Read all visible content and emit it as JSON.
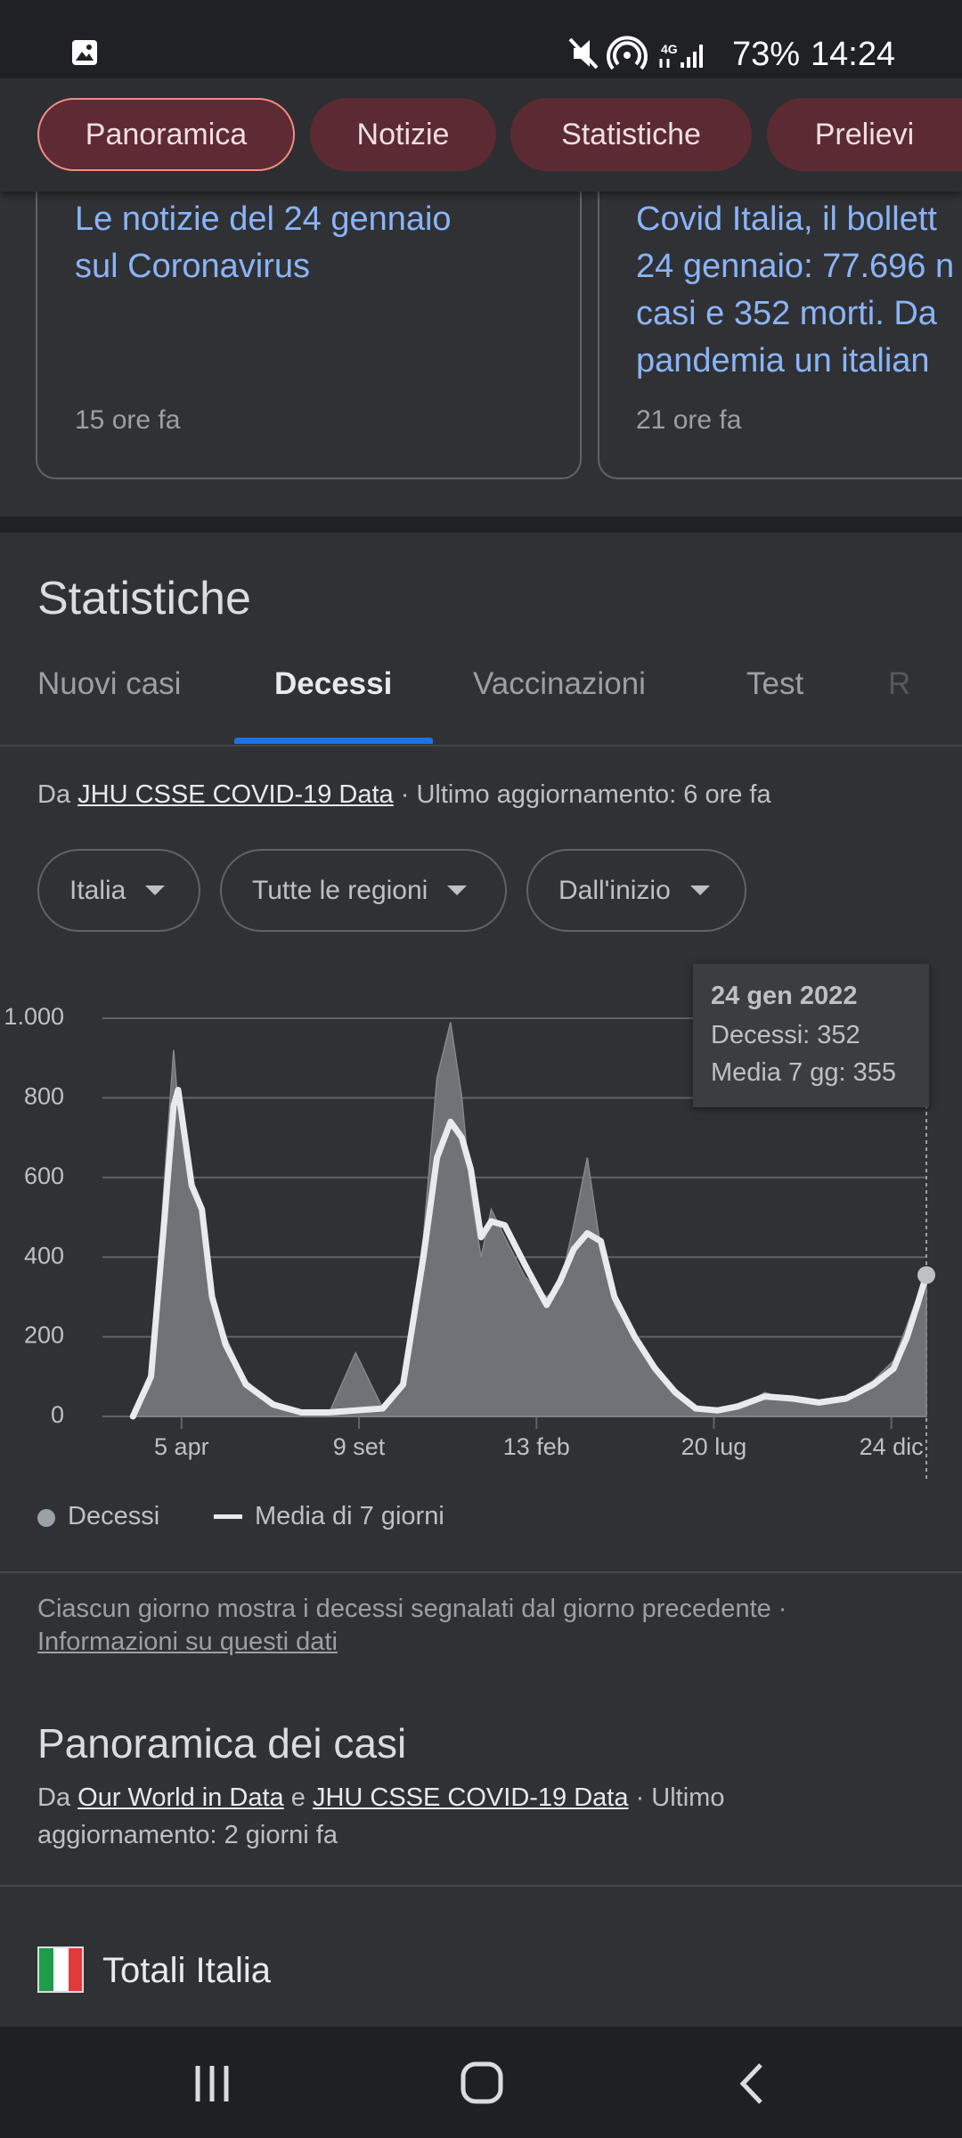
{
  "status_bar": {
    "battery": "73%",
    "time": "14:24"
  },
  "chips": [
    "Panoramica",
    "Notizie",
    "Statistiche",
    "Prelievi"
  ],
  "news": [
    {
      "title": [
        "Le notizie del 24 gennaio",
        "sul Coronavirus"
      ],
      "time": "15 ore fa"
    },
    {
      "title": [
        "Covid Italia, il bollett",
        "24 gennaio: 77.696 n",
        "casi e 352 morti. Da",
        "pandemia un italian"
      ],
      "time": "21 ore fa"
    }
  ],
  "stats": {
    "title": "Statistiche",
    "tabs": [
      "Nuovi casi",
      "Decessi",
      "Vaccinazioni",
      "Test",
      "R"
    ],
    "source": {
      "prefix": "Da",
      "link": "JHU CSSE COVID-19 Data",
      "suffix": "· Ultimo aggiornamento: 6 ore fa"
    },
    "filters": [
      "Italia",
      "Tutte le regioni",
      "Dall'inizio"
    ],
    "note": "Ciascun giorno mostra i decessi segnalati dal giorno precedente  ·",
    "info_link": "Informazioni su questi dati"
  },
  "tooltip": {
    "date": "24 gen 2022",
    "lines": [
      "Decessi: 352",
      "Media 7 gg: 355"
    ]
  },
  "chart_data": {
    "type": "line",
    "x": [
      0,
      16,
      28,
      36,
      40,
      46,
      52,
      61,
      70,
      82,
      100,
      124,
      149,
      173,
      197,
      221,
      239,
      257,
      269,
      281,
      291,
      299,
      308,
      317,
      329,
      347,
      366,
      378,
      390,
      402,
      414,
      426,
      444,
      462,
      480,
      498,
      517,
      535,
      559,
      583,
      607,
      631,
      655,
      673,
      685,
      694,
      702
    ],
    "series": [
      {
        "name": "Decessi",
        "color": "#6f7276",
        "style": "area",
        "values": [
          0,
          80,
          600,
          920,
          780,
          650,
          600,
          500,
          320,
          200,
          90,
          30,
          10,
          5,
          160,
          20,
          90,
          450,
          850,
          990,
          800,
          560,
          400,
          520,
          450,
          350,
          300,
          330,
          480,
          650,
          420,
          280,
          190,
          130,
          70,
          25,
          10,
          20,
          60,
          40,
          30,
          50,
          90,
          140,
          230,
          300,
          352
        ]
      },
      {
        "name": "Media di 7 giorni",
        "color": "#e8eaed",
        "style": "line",
        "values": [
          0,
          100,
          500,
          780,
          820,
          700,
          580,
          520,
          300,
          180,
          80,
          30,
          10,
          10,
          15,
          20,
          80,
          400,
          650,
          740,
          700,
          620,
          450,
          490,
          480,
          380,
          280,
          340,
          420,
          460,
          440,
          300,
          200,
          120,
          60,
          20,
          15,
          25,
          50,
          45,
          35,
          45,
          80,
          120,
          200,
          280,
          355
        ]
      }
    ],
    "xlim": [
      -27,
      702
    ],
    "xticks": [
      {
        "value": 43,
        "label": "5 apr"
      },
      {
        "value": 200,
        "label": "9 set"
      },
      {
        "value": 357,
        "label": "13 feb"
      },
      {
        "value": 514,
        "label": "20 lug"
      },
      {
        "value": 671,
        "label": "24 dic"
      }
    ],
    "ylim": [
      0,
      1000
    ],
    "yticks": [
      0,
      200,
      400,
      600,
      800,
      {
        "value": 1000,
        "label": "1.000"
      }
    ],
    "grid": true
  },
  "overview": {
    "title": "Panoramica dei casi",
    "source": {
      "prefix": "Da",
      "link1": "Our World in Data",
      "joiner": "e",
      "link2": "JHU CSSE COVID-19 Data",
      "suffix": "· Ultimo",
      "line2": "aggiornamento: 2 giorni fa"
    },
    "region": "Totali Italia"
  }
}
